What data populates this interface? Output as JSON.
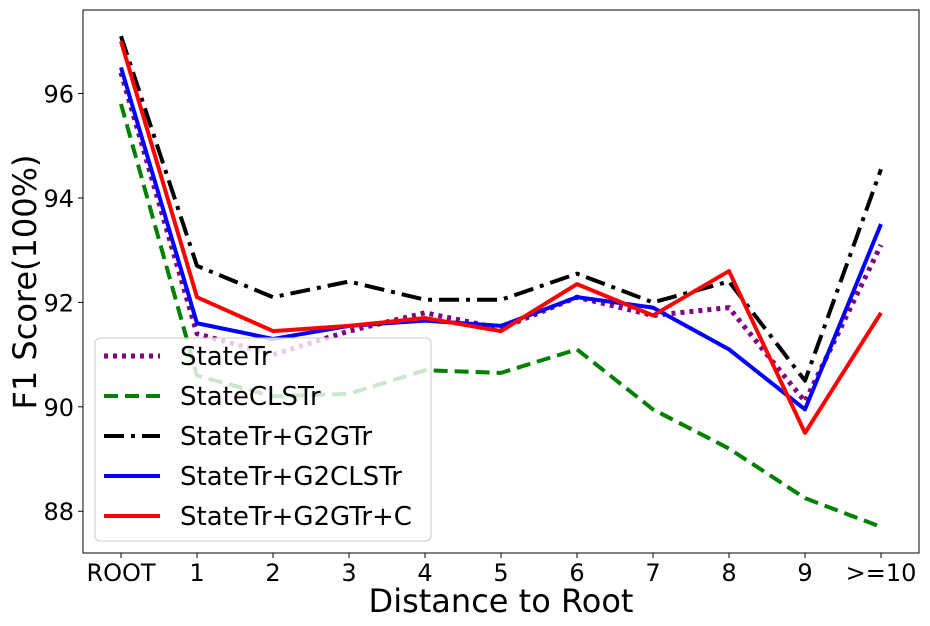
{
  "chart_data": {
    "type": "line",
    "xlabel": "Distance to Root",
    "ylabel": "F1 Score(100%)",
    "categories": [
      "ROOT",
      "1",
      "2",
      "3",
      "4",
      "5",
      "6",
      "7",
      "8",
      "9",
      ">=10"
    ],
    "ylim": [
      87.2,
      97.6
    ],
    "yticks": [
      88,
      90,
      92,
      94,
      96
    ],
    "grid": false,
    "legend_position": "bottom-left",
    "series": [
      {
        "name": "StateTr",
        "color": "#800080",
        "style": "dotted",
        "values": [
          96.4,
          91.4,
          91.0,
          91.45,
          91.8,
          91.5,
          92.1,
          91.75,
          91.9,
          90.1,
          93.1
        ]
      },
      {
        "name": "StateCLSTr",
        "color": "#008000",
        "style": "dashed",
        "values": [
          95.8,
          90.6,
          90.2,
          90.25,
          90.7,
          90.65,
          91.1,
          89.95,
          89.2,
          88.25,
          87.7
        ]
      },
      {
        "name": "StateTr+G2GTr",
        "color": "#000000",
        "style": "dashdot",
        "values": [
          97.1,
          92.7,
          92.1,
          92.4,
          92.05,
          92.05,
          92.55,
          92.0,
          92.4,
          90.5,
          94.55
        ]
      },
      {
        "name": "StateTr+G2CLSTr",
        "color": "#0000ff",
        "style": "solid",
        "values": [
          96.5,
          91.6,
          91.3,
          91.55,
          91.65,
          91.55,
          92.1,
          91.9,
          91.1,
          89.95,
          93.5
        ]
      },
      {
        "name": "StateTr+G2GTr+C",
        "color": "#ff0000",
        "style": "solid",
        "values": [
          97.0,
          92.1,
          91.45,
          91.55,
          91.7,
          91.45,
          92.35,
          91.75,
          92.6,
          89.5,
          91.8
        ]
      }
    ]
  }
}
